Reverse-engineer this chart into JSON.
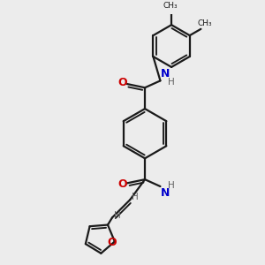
{
  "bg_color": "#ececec",
  "bond_color": "#1a1a1a",
  "N_color": "#0000cc",
  "O_color": "#cc0000",
  "H_color": "#606060",
  "lw": 1.6,
  "dbo": 0.11,
  "xlim": [
    0,
    10
  ],
  "ylim": [
    0,
    10
  ],
  "fig_w": 3.0,
  "fig_h": 3.0,
  "dpi": 100
}
